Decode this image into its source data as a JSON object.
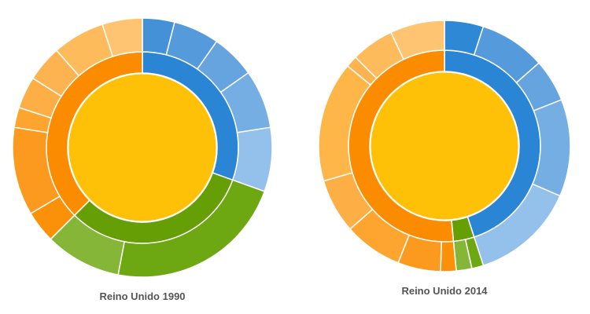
{
  "chart_data": [
    {
      "type": "sunburst",
      "title": "Reino Unido 1990",
      "center": {
        "value": 100,
        "color": "#FFC107"
      },
      "groups": [
        {
          "value": 30.5,
          "color": "#2A86D5",
          "children": [
            {
              "value": 4.0,
              "color": "#4591D7"
            },
            {
              "value": 5.7,
              "color": "#559ADB"
            },
            {
              "value": 5.5,
              "color": "#65A4DF"
            },
            {
              "value": 7.3,
              "color": "#75AEE3"
            },
            {
              "value": 8.0,
              "color": "#94C1EB"
            }
          ]
        },
        {
          "value": 32.0,
          "color": "#669E06",
          "children": [
            {
              "value": 22.5,
              "color": "#6DA812"
            },
            {
              "value": 9.5,
              "color": "#86B637"
            }
          ]
        },
        {
          "value": 37.5,
          "color": "#FB8C00",
          "children": [
            {
              "value": 4.0,
              "color": "#FB9108"
            },
            {
              "value": 11.0,
              "color": "#FC9A1F"
            },
            {
              "value": 2.5,
              "color": "#FDA52F"
            },
            {
              "value": 4.0,
              "color": "#FDAE44"
            },
            {
              "value": 4.5,
              "color": "#FDB34F"
            },
            {
              "value": 6.5,
              "color": "#FDBB5C"
            },
            {
              "value": 5.0,
              "color": "#FEC471"
            }
          ]
        }
      ]
    },
    {
      "type": "sunburst",
      "title": "Reino Unido 2014",
      "center": {
        "value": 100,
        "color": "#FFC107"
      },
      "groups": [
        {
          "value": 45.0,
          "color": "#2A86D5",
          "children": [
            {
              "value": 5.0,
              "color": "#2E88D6"
            },
            {
              "value": 8.5,
              "color": "#559ADB"
            },
            {
              "value": 5.5,
              "color": "#65A4DF"
            },
            {
              "value": 12.5,
              "color": "#75AEE3"
            },
            {
              "value": 13.5,
              "color": "#94C1EB"
            }
          ]
        },
        {
          "value": 3.5,
          "color": "#669E06",
          "children": [
            {
              "value": 1.5,
              "color": "#6DA812"
            },
            {
              "value": 2.0,
              "color": "#86B637"
            }
          ]
        },
        {
          "value": 51.5,
          "color": "#FB8C00",
          "children": [
            {
              "value": 2.0,
              "color": "#FB9108"
            },
            {
              "value": 5.5,
              "color": "#FC9A1F"
            },
            {
              "value": 7.5,
              "color": "#FDA52F"
            },
            {
              "value": 7.0,
              "color": "#FDAE44"
            },
            {
              "value": 15.5,
              "color": "#FEB648"
            },
            {
              "value": 1.5,
              "color": "#FDB34F"
            },
            {
              "value": 5.5,
              "color": "#FDBB5C"
            },
            {
              "value": 7.0,
              "color": "#FEC471"
            }
          ]
        }
      ]
    }
  ]
}
